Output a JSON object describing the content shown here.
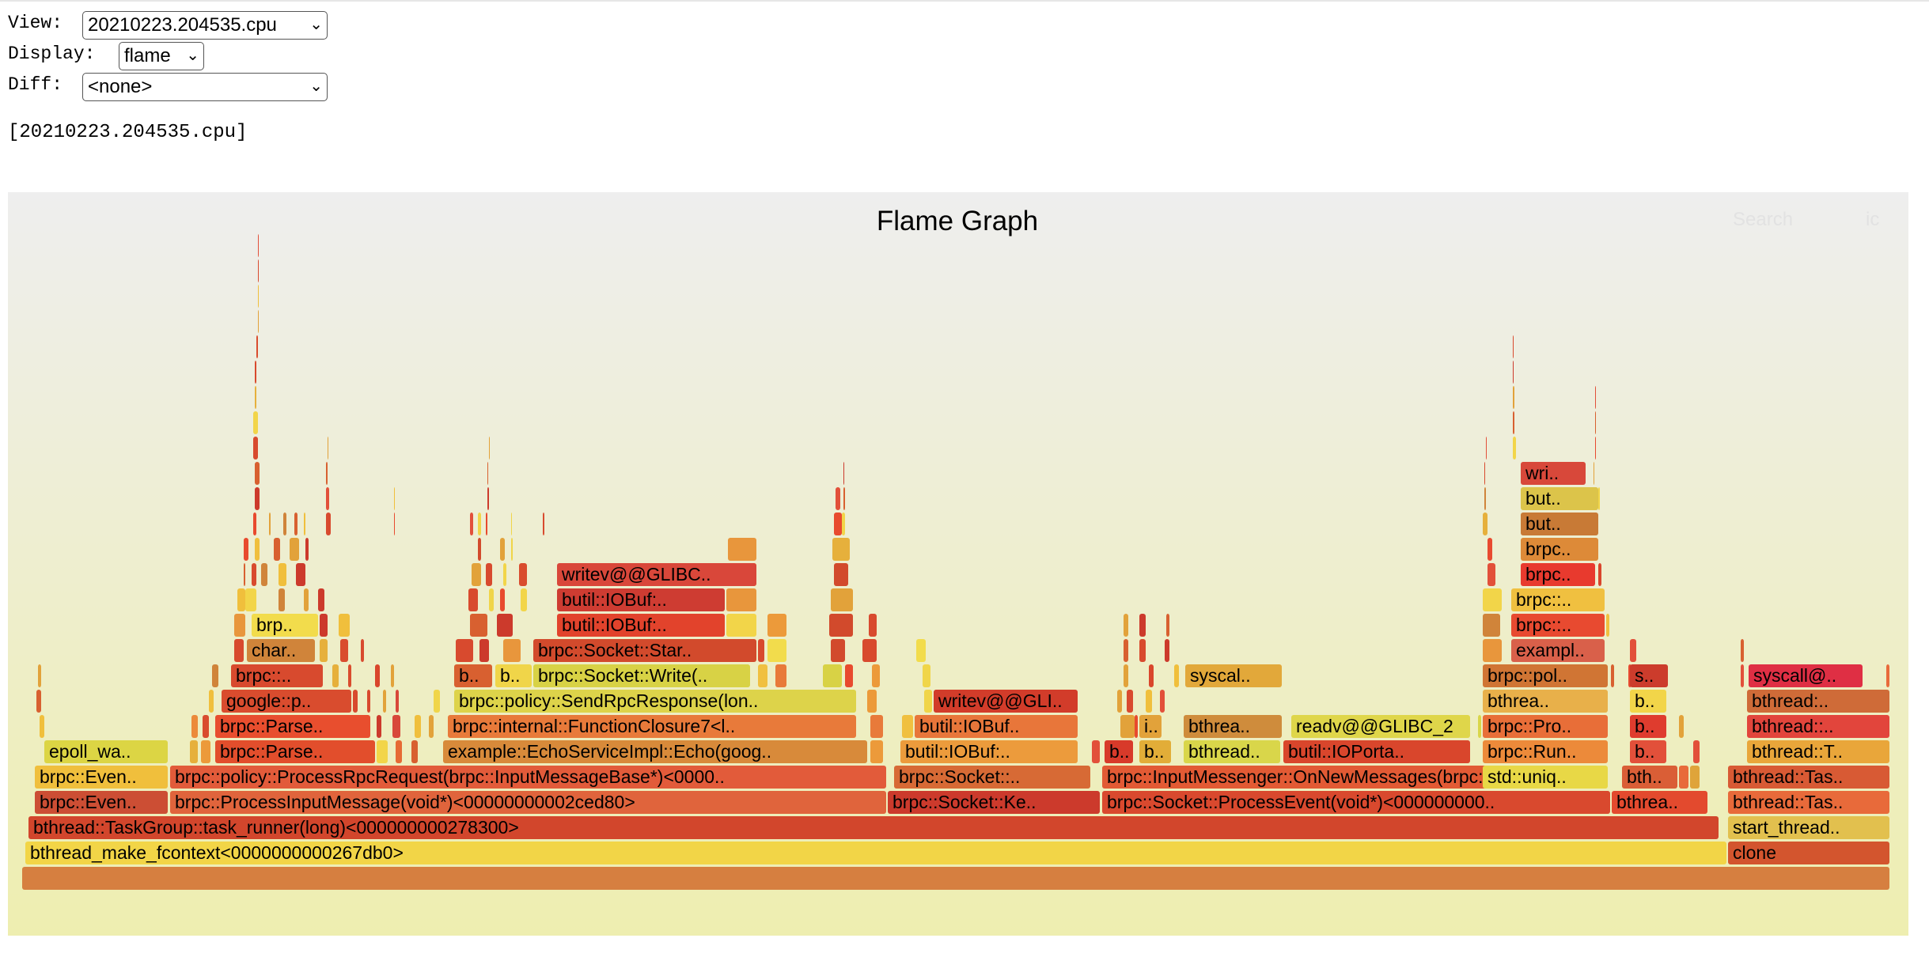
{
  "controls": {
    "view_label": "View:",
    "view_value": "20210223.204535.cpu",
    "display_label": "Display:",
    "display_value": "flame",
    "diff_label": "Diff:",
    "diff_value": "<none>"
  },
  "profile_name": "[20210223.204535.cpu]",
  "flame_graph": {
    "title": "Flame Graph",
    "search_label": "Search",
    "ic_label": "ic",
    "frames": [
      {
        "text": "bthread_make_fcontext<0000000000267db0>",
        "color": "#f2d547"
      },
      {
        "text": "bthread::TaskGroup::task_runner(long)<000000000278300>",
        "color": "#d2462c"
      },
      {
        "text": "brpc::Even..",
        "color": "#cc4e34"
      },
      {
        "text": "brpc::ProcessInputMessage(void*)<00000000002ced80>",
        "color": "#e0643c"
      },
      {
        "text": "brpc::Socket::Ke..",
        "color": "#cc3a2c"
      },
      {
        "text": "brpc::Socket::ProcessEvent(void*)<000000000..",
        "color": "#d9492e"
      },
      {
        "text": "bthrea..",
        "color": "#e34a2e"
      },
      {
        "text": "brpc::Even..",
        "color": "#f0bf3c"
      },
      {
        "text": "brpc::policy::ProcessRpcRequest(brpc::InputMessageBase*)<0000..",
        "color": "#e25b3a"
      },
      {
        "text": "brpc::Socket::..",
        "color": "#d76a35"
      },
      {
        "text": "brpc::InputMessenger::OnNewMessages(brpc::S..",
        "color": "#e25a34"
      },
      {
        "text": "epoll_wa..",
        "color": "#dcd544"
      },
      {
        "text": "brpc::Parse..",
        "color": "#e24e2c"
      },
      {
        "text": "example::EchoServiceImpl::Echo(goog..",
        "color": "#d88a3a"
      },
      {
        "text": "butil::IOBuf:..",
        "color": "#ec9b3c"
      },
      {
        "text": "b..",
        "color": "#d83a2a"
      },
      {
        "text": "b..",
        "color": "#e2ad38"
      },
      {
        "text": "bthread..",
        "color": "#d9d64a"
      },
      {
        "text": "butil::IOPorta..",
        "color": "#d9462c"
      },
      {
        "text": "brpc::Parse..",
        "color": "#e84e2e"
      },
      {
        "text": "brpc::internal::FunctionClosure7<l..",
        "color": "#e87a3a"
      },
      {
        "text": "butil::IOBuf..",
        "color": "#e8763a"
      },
      {
        "text": "i..",
        "color": "#e2a23a"
      },
      {
        "text": "bthrea..",
        "color": "#cf8c3c"
      },
      {
        "text": "readv@@GLIBC_2",
        "color": "#dfd64a"
      },
      {
        "text": "google::p..",
        "color": "#d94c2e"
      },
      {
        "text": "brpc::policy::SendRpcResponse(lon..",
        "color": "#ddd34a"
      },
      {
        "text": "writev@@GLI..",
        "color": "#d23c2a"
      },
      {
        "text": "bthrea..",
        "color": "#e8b04a"
      },
      {
        "text": "brpc::..",
        "color": "#d84a2e"
      },
      {
        "text": "b..",
        "color": "#d86030"
      },
      {
        "text": "b..",
        "color": "#f0d549"
      },
      {
        "text": "brpc::Socket::Write(..",
        "color": "#d8d245"
      },
      {
        "text": "syscal..",
        "color": "#e2a83a"
      },
      {
        "text": "char..",
        "color": "#d0843a"
      },
      {
        "text": "brpc::Socket::Star..",
        "color": "#d24a2c"
      },
      {
        "text": "brp..",
        "color": "#f2dc4c"
      },
      {
        "text": "butil::IOBuf:..",
        "color": "#e2432c"
      },
      {
        "text": "butil::IOBuf:..",
        "color": "#ce3c32"
      },
      {
        "text": "writev@@GLIBC..",
        "color": "#d9473a"
      },
      {
        "text": "brpc::Pro..",
        "color": "#e86e38"
      },
      {
        "text": "std::uniq..",
        "color": "#e8d846"
      },
      {
        "text": "brpc::Run..",
        "color": "#ec8a3a"
      },
      {
        "text": "brpc::pol..",
        "color": "#d07534"
      },
      {
        "text": "exampl..",
        "color": "#d9604a"
      },
      {
        "text": "brpc::..",
        "color": "#e84a30"
      },
      {
        "text": "brpc::..",
        "color": "#f0c040"
      },
      {
        "text": "brpc..",
        "color": "#e83a2e"
      },
      {
        "text": "brpc..",
        "color": "#dd8a38"
      },
      {
        "text": "but..",
        "color": "#c87a36"
      },
      {
        "text": "but..",
        "color": "#dcc44a"
      },
      {
        "text": "wri..",
        "color": "#d8483a"
      },
      {
        "text": "bth..",
        "color": "#da5e36"
      },
      {
        "text": "b..",
        "color": "#e2503a"
      },
      {
        "text": "b..",
        "color": "#df3c2e"
      },
      {
        "text": "b..",
        "color": "#f2d549"
      },
      {
        "text": "s..",
        "color": "#cc3c2c"
      },
      {
        "text": "clone",
        "color": "#d3552e"
      },
      {
        "text": "start_thread..",
        "color": "#e2c04e"
      },
      {
        "text": "bthread::Tas..",
        "color": "#e86a3a"
      },
      {
        "text": "bthread::Tas..",
        "color": "#d85a34"
      },
      {
        "text": "bthread::T..",
        "color": "#e9a63a"
      },
      {
        "text": "bthread::..",
        "color": "#e2453c"
      },
      {
        "text": "bthread:..",
        "color": "#cf6b38"
      },
      {
        "text": "syscall@..",
        "color": "#df2f44"
      }
    ]
  }
}
